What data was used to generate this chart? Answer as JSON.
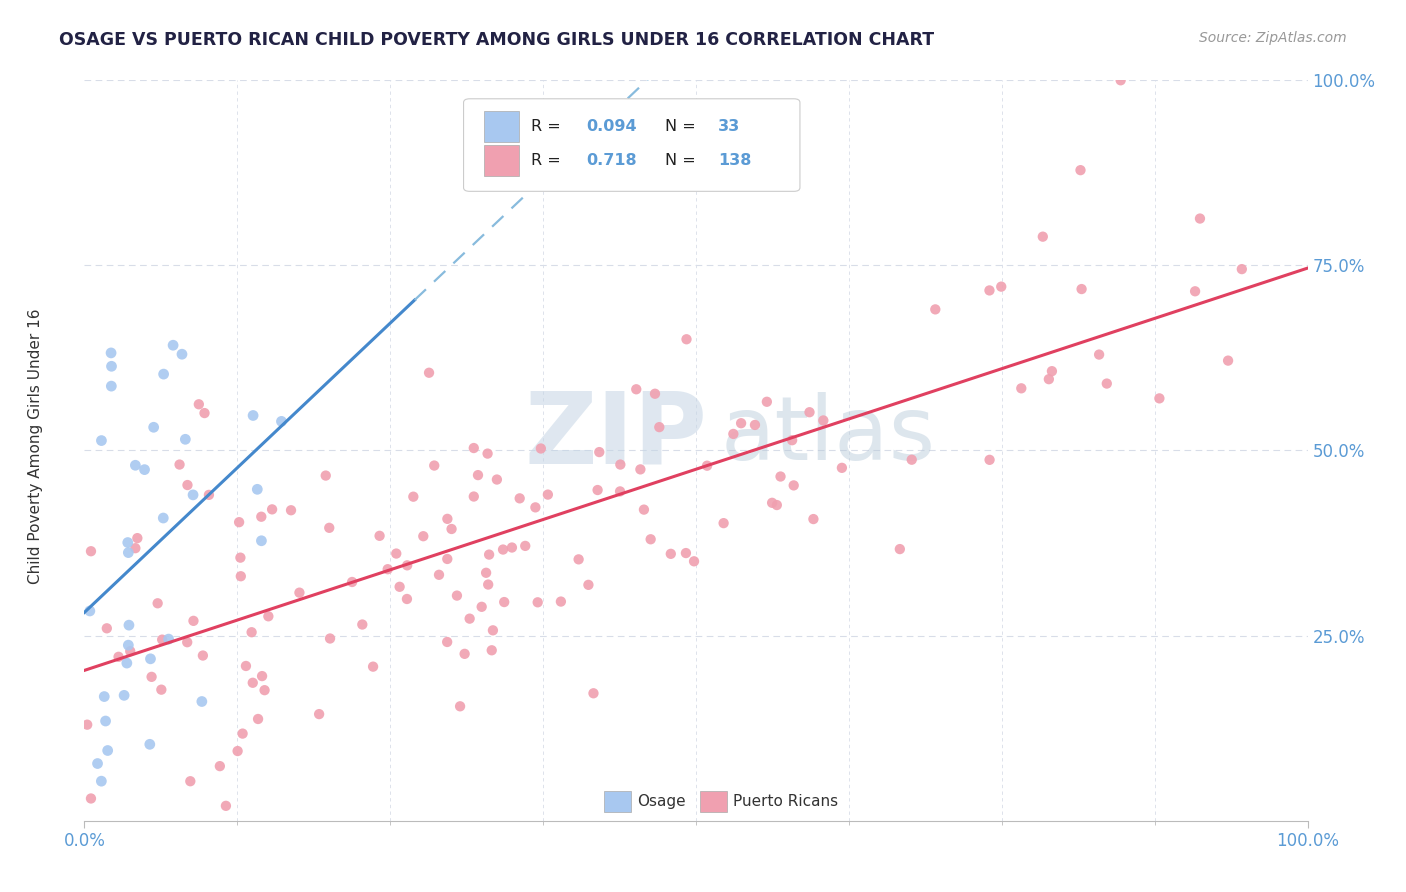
{
  "title": "OSAGE VS PUERTO RICAN CHILD POVERTY AMONG GIRLS UNDER 16 CORRELATION CHART",
  "source": "Source: ZipAtlas.com",
  "ylabel": "Child Poverty Among Girls Under 16",
  "xlim": [
    0.0,
    1.0
  ],
  "ylim": [
    0.0,
    1.0
  ],
  "osage_R": "0.094",
  "osage_N": "33",
  "puertorico_R": "0.718",
  "puertorico_N": "138",
  "osage_color": "#a8c8f0",
  "puertorico_color": "#f0a0b0",
  "osage_line_color": "#4488cc",
  "puertorico_line_color": "#e04060",
  "osage_dash_color": "#88bbdd",
  "watermark_zip": "ZIP",
  "watermark_atlas": "atlas",
  "watermark_color_zip": "#c8d8e8",
  "watermark_color_atlas": "#b8ccd8",
  "background_color": "#ffffff",
  "grid_color": "#d8dde8",
  "tick_color": "#5b9bd5",
  "text_color": "#333333",
  "title_color": "#222244",
  "source_color": "#999999",
  "osage_seed": 42,
  "pr_seed": 77
}
